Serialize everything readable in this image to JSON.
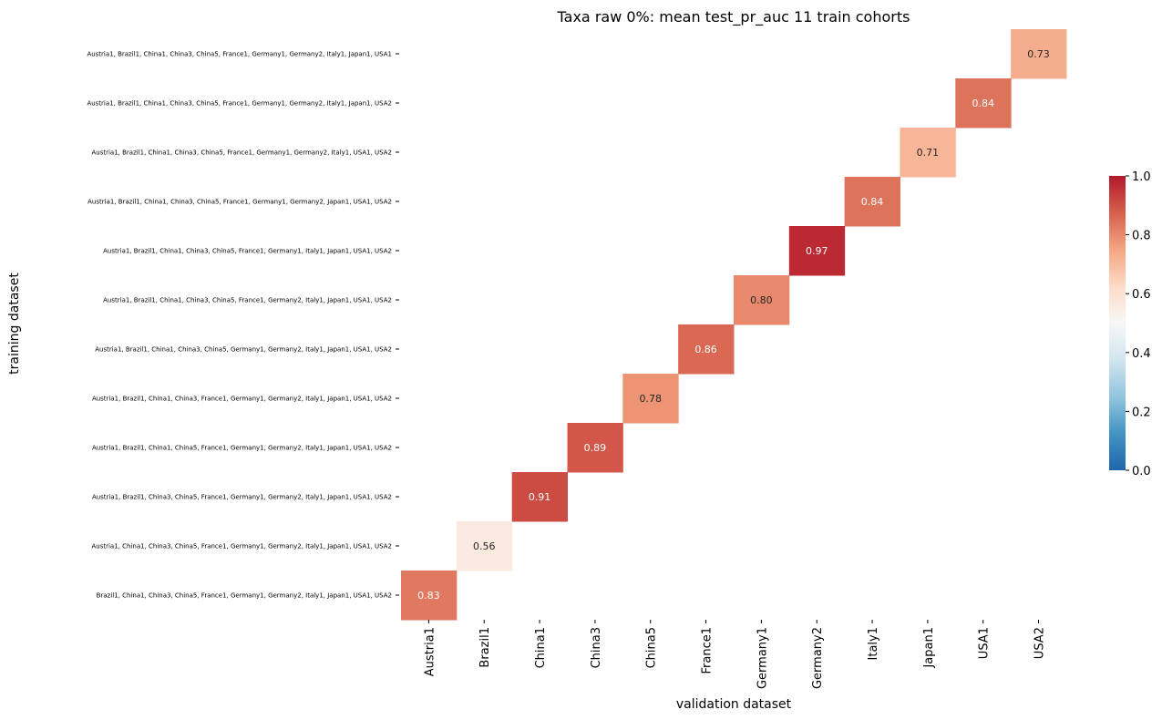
{
  "chart_data": {
    "type": "heatmap",
    "title": "Taxa raw 0%: mean test_pr_auc 11 train cohorts",
    "xlabel": "validation dataset",
    "ylabel": "training dataset",
    "x_categories": [
      "Austria1",
      "Brazil1",
      "China1",
      "China3",
      "China5",
      "France1",
      "Germany1",
      "Germany2",
      "Italy1",
      "Japan1",
      "USA1",
      "USA2"
    ],
    "y_categories": [
      "Austria1, Brazil1, China1, China3, China5, France1, Germany1, Germany2, Italy1, Japan1, USA1",
      "Austria1, Brazil1, China1, China3, China5, France1, Germany1, Germany2, Italy1, Japan1, USA2",
      "Austria1, Brazil1, China1, China3, China5, France1, Germany1, Germany2, Italy1, USA1, USA2",
      "Austria1, Brazil1, China1, China3, China5, France1, Germany1, Germany2, Japan1, USA1, USA2",
      "Austria1, Brazil1, China1, China3, China5, France1, Germany1, Italy1, Japan1, USA1, USA2",
      "Austria1, Brazil1, China1, China3, China5, France1, Germany2, Italy1, Japan1, USA1, USA2",
      "Austria1, Brazil1, China1, China3, China5, Germany1, Germany2, Italy1, Japan1, USA1, USA2",
      "Austria1, Brazil1, China1, China3, France1, Germany1, Germany2, Italy1, Japan1, USA1, USA2",
      "Austria1, Brazil1, China1, China5, France1, Germany1, Germany2, Italy1, Japan1, USA1, USA2",
      "Austria1, Brazil1, China3, China5, France1, Germany1, Germany2, Italy1, Japan1, USA1, USA2",
      "Austria1, China1, China3, China5, France1, Germany1, Germany2, Italy1, Japan1, USA1, USA2",
      "Brazil1, China1, China3, China5, France1, Germany1, Germany2, Italy1, Japan1, USA1, USA2"
    ],
    "cells": [
      {
        "row": 0,
        "col": 11,
        "value": 0.73,
        "label": "0.73"
      },
      {
        "row": 1,
        "col": 10,
        "value": 0.84,
        "label": "0.84"
      },
      {
        "row": 2,
        "col": 9,
        "value": 0.71,
        "label": "0.71"
      },
      {
        "row": 3,
        "col": 8,
        "value": 0.84,
        "label": "0.84"
      },
      {
        "row": 4,
        "col": 7,
        "value": 0.97,
        "label": "0.97"
      },
      {
        "row": 5,
        "col": 6,
        "value": 0.8,
        "label": "0.80"
      },
      {
        "row": 6,
        "col": 5,
        "value": 0.86,
        "label": "0.86"
      },
      {
        "row": 7,
        "col": 4,
        "value": 0.78,
        "label": "0.78"
      },
      {
        "row": 8,
        "col": 3,
        "value": 0.89,
        "label": "0.89"
      },
      {
        "row": 9,
        "col": 2,
        "value": 0.91,
        "label": "0.91"
      },
      {
        "row": 10,
        "col": 1,
        "value": 0.56,
        "label": "0.56"
      },
      {
        "row": 11,
        "col": 0,
        "value": 0.83,
        "label": "0.83"
      }
    ],
    "colorbar": {
      "vmin": 0.0,
      "vmax": 1.0,
      "ticks": [
        "0.0",
        "0.2",
        "0.4",
        "0.6",
        "0.8",
        "1.0"
      ],
      "colormap": [
        "#2166ac",
        "#4393c3",
        "#92c5de",
        "#d1e5f0",
        "#f7f7f7",
        "#fddbc7",
        "#f4a582",
        "#d6604d",
        "#b2182b"
      ]
    },
    "grid": false
  }
}
